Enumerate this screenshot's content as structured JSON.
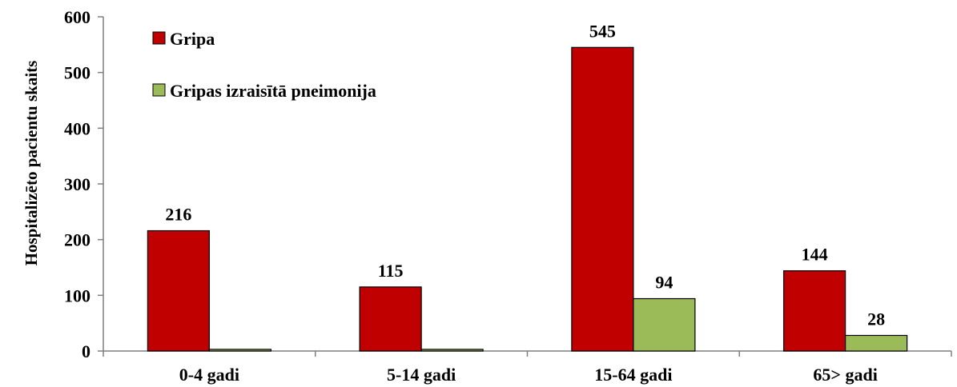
{
  "chart_data": {
    "type": "bar",
    "categories": [
      "0-4 gadi",
      "5-14 gadi",
      "15-64 gadi",
      "65> gadi"
    ],
    "series": [
      {
        "name": "Gripa",
        "values": [
          216,
          115,
          545,
          144
        ],
        "labels": [
          "216",
          "115",
          "545",
          "144"
        ],
        "color": "#C00000"
      },
      {
        "name": "Gripas izraisītā pneimonija",
        "values": [
          3,
          3,
          94,
          28
        ],
        "labels": [
          "",
          "",
          "94",
          "28"
        ],
        "color": "#9BBB59"
      }
    ],
    "title": "",
    "xlabel": "",
    "ylabel": "Hospitalizēto pacientu skaits",
    "ylim": [
      0,
      600
    ],
    "yticks": [
      0,
      100,
      200,
      300,
      400,
      500,
      600
    ],
    "ytick_labels": [
      "0",
      "100",
      "200",
      "300",
      "400",
      "500",
      "600"
    ],
    "grid": false,
    "legend_position": "top-left"
  }
}
